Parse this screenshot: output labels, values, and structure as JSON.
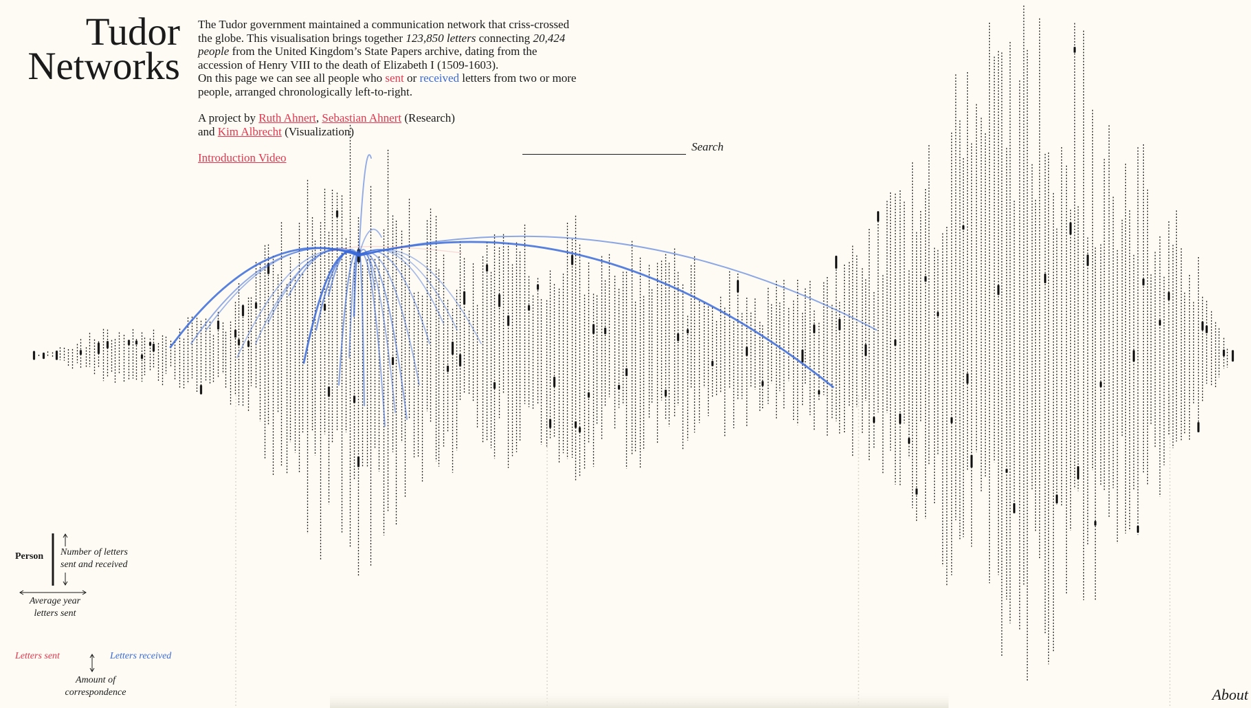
{
  "header": {
    "title_line1": "Tudor",
    "title_line2": "Networks"
  },
  "intro": {
    "p1_a": "The Tudor government maintained a communication network that criss-crossed the globe. This visualisation brings together ",
    "letters_count": "123,850 letters",
    "p1_b": " connecting ",
    "people_count": "20,424 people",
    "p1_c": " from the United Kingdom’s State Papers archive, dating from the accession of Henry VIII to the death of Elizabeth I (1509-1603).",
    "p2_a": "On this page we can see all people who ",
    "sent_word": "sent",
    "p2_b": " or ",
    "received_word": "received",
    "p2_c": " letters from two or more people, arranged chronologically left-to-right.",
    "credits_a": "A project by ",
    "author1": "Ruth Ahnert",
    "credits_sep": ", ",
    "author2": "Sebastian Ahnert",
    "credits_b": " (Research)",
    "credits_c": "and ",
    "author3": "Kim Albrecht",
    "credits_d": " (Visualization)",
    "video_link": "Introduction Video"
  },
  "search": {
    "label": "Search",
    "value": ""
  },
  "legend": {
    "person": "Person",
    "count_line1": "Number of letters",
    "count_line2": "sent and received",
    "year_line1": "Average year",
    "year_line2": "letters sent",
    "sent": "Letters sent",
    "received": "Letters received",
    "amount_line1": "Amount of",
    "amount_line2": "correspondence"
  },
  "footer": {
    "about": "About"
  },
  "colors": {
    "background": "#fdfbf3",
    "ink": "#1a1a1a",
    "sent": "#e3374f",
    "received": "#3b6ad8"
  },
  "icons": [
    "arrow-up-icon",
    "arrow-down-icon",
    "double-arrow-icon"
  ]
}
